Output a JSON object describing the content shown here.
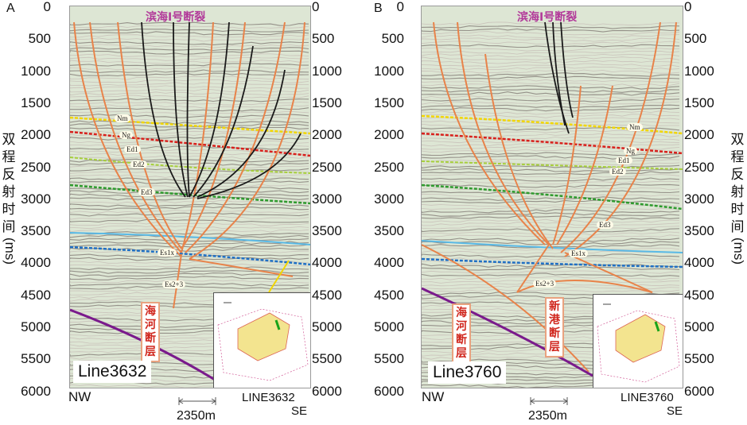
{
  "panels": [
    {
      "letter": "A",
      "top_title": "滨海Ⅰ号断裂",
      "line_label": "Line3632",
      "left_direction": "NW",
      "right_label_1": "LINE3632",
      "right_label_2": "SE",
      "scale_bar": "2350m",
      "fault_label": "海河断层",
      "horizons": [
        "Nm",
        "Ng",
        "Ed1",
        "Ed2",
        "Ed3",
        "Es1x",
        "Es2+3"
      ]
    },
    {
      "letter": "B",
      "top_title": "滨海Ⅰ号断裂",
      "line_label": "Line3760",
      "left_direction": "NW",
      "right_label_1": "LINE3760",
      "right_label_2": "SE",
      "scale_bar": "2350m",
      "fault_label": "海河断层",
      "fault_label_2": "新港断层",
      "horizons": [
        "Nm",
        "Ng",
        "Ed1",
        "Ed2",
        "Ed3",
        "Es1x",
        "Es2+3"
      ]
    }
  ],
  "axis": {
    "ticks": [
      "0",
      "500",
      "1000",
      "1500",
      "2000",
      "2500",
      "3000",
      "3500",
      "4000",
      "4500",
      "5000",
      "5500",
      "6000"
    ],
    "ylabel_chars": [
      "双",
      "程",
      "反",
      "射",
      "时",
      "间"
    ],
    "ylabel_unit": "(ms)"
  },
  "colors": {
    "fault_orange": "#e8834a",
    "fault_black": "#1a1a1a",
    "purple_fault": "#7a1a8c",
    "horizon_yellow": "#f2d600",
    "horizon_red": "#d8201c",
    "horizon_lightgreen": "#a6cf3a",
    "horizon_green": "#2d9a2d",
    "horizon_lightblue": "#59b9e6",
    "horizon_blue": "#1f6fc4"
  }
}
